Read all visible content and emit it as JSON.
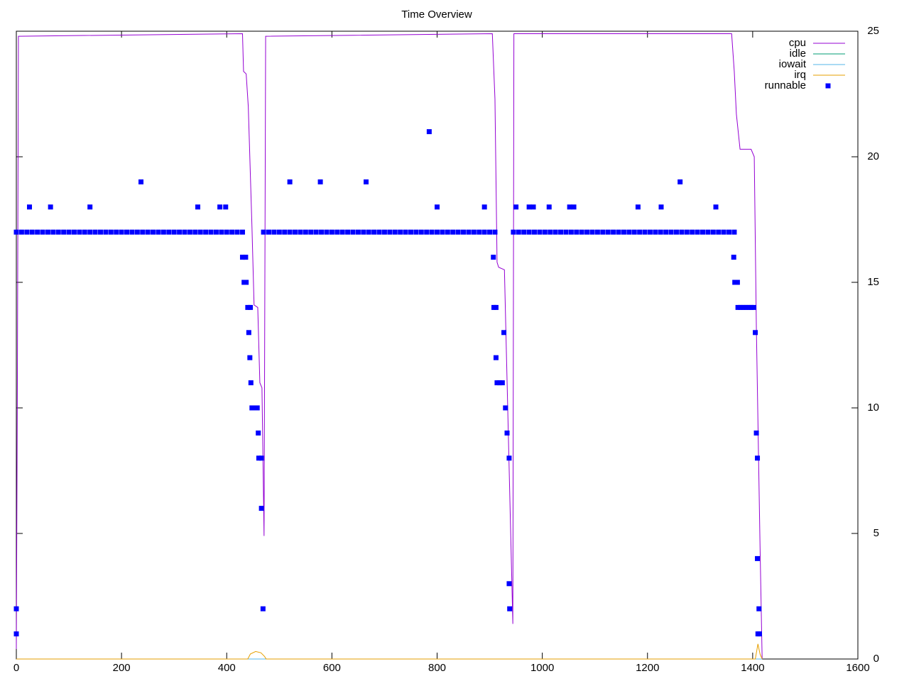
{
  "chart_data": {
    "type": "line",
    "title": "Time Overview",
    "xlim": [
      0,
      1600
    ],
    "xticks": [
      0,
      200,
      400,
      600,
      800,
      1000,
      1200,
      1400,
      1600
    ],
    "ylim": [
      0,
      25
    ],
    "yticks": [
      0,
      5,
      10,
      15,
      20,
      25
    ],
    "y_axis_side": "right",
    "legend": "top-right",
    "series": [
      {
        "name": "cpu",
        "color": "#9400d3",
        "style": "line",
        "x": [
          0,
          2,
          4,
          430,
          432,
          437,
          441,
          448,
          452,
          459,
          463,
          467,
          471,
          474,
          905,
          910,
          914,
          917,
          928,
          944,
          946,
          1360,
          1365,
          1369,
          1376,
          1397,
          1403,
          1407,
          1414,
          1418
        ],
        "values": [
          0.4,
          11,
          24.8,
          24.9,
          23.4,
          23.3,
          22,
          17.2,
          14.1,
          14,
          11,
          10.8,
          4.9,
          24.8,
          24.9,
          22.3,
          15.8,
          15.6,
          15.5,
          1.4,
          24.9,
          24.9,
          23.4,
          21.7,
          20.3,
          20.3,
          20,
          13.2,
          4.5,
          0
        ]
      },
      {
        "name": "idle",
        "color": "#009e73",
        "style": "line",
        "x": [
          0,
          1418
        ],
        "values": [
          0,
          0
        ]
      },
      {
        "name": "iowait",
        "color": "#56b4e9",
        "style": "line",
        "x": [
          0,
          1418
        ],
        "values": [
          0,
          0
        ]
      },
      {
        "name": "irq",
        "color": "#e69f00",
        "style": "line",
        "x": [
          0,
          440,
          445,
          455,
          465,
          472,
          475,
          1405,
          1410,
          1414,
          1418
        ],
        "values": [
          0,
          0,
          0.2,
          0.3,
          0.25,
          0.1,
          0,
          0,
          0.6,
          0.2,
          0
        ]
      },
      {
        "name": "runnable",
        "color": "#0000ff",
        "style": "points",
        "x": [
          0,
          10,
          20,
          30,
          40,
          50,
          60,
          70,
          80,
          90,
          100,
          110,
          120,
          130,
          140,
          150,
          160,
          170,
          180,
          190,
          200,
          210,
          220,
          230,
          240,
          250,
          260,
          270,
          280,
          290,
          300,
          310,
          320,
          330,
          340,
          350,
          360,
          370,
          380,
          390,
          400,
          410,
          420,
          430,
          470,
          480,
          490,
          500,
          510,
          520,
          530,
          540,
          550,
          560,
          570,
          580,
          590,
          600,
          610,
          620,
          630,
          640,
          650,
          660,
          670,
          680,
          690,
          700,
          710,
          720,
          730,
          740,
          750,
          760,
          770,
          780,
          790,
          800,
          810,
          820,
          830,
          840,
          850,
          860,
          870,
          880,
          890,
          900,
          910,
          945,
          955,
          965,
          975,
          985,
          995,
          1005,
          1015,
          1025,
          1035,
          1045,
          1055,
          1065,
          1075,
          1085,
          1095,
          1105,
          1115,
          1125,
          1135,
          1145,
          1155,
          1165,
          1175,
          1185,
          1195,
          1205,
          1215,
          1225,
          1235,
          1245,
          1255,
          1265,
          1275,
          1285,
          1295,
          1305,
          1315,
          1325,
          1335,
          1345,
          1355,
          1365,
          0,
          0,
          25,
          65,
          140,
          237,
          345,
          387,
          398,
          430,
          436,
          433,
          437,
          440,
          445,
          442,
          444,
          446,
          448,
          453,
          458,
          460,
          461,
          466,
          466,
          469,
          520,
          578,
          665,
          785,
          800,
          890,
          907,
          908,
          912,
          912,
          914,
          919,
          924,
          927,
          930,
          933,
          937,
          937,
          938,
          950,
          975,
          983,
          1013,
          1052,
          1060,
          1182,
          1226,
          1262,
          1330,
          1364,
          1366,
          1371,
          1372,
          1377,
          1382,
          1387,
          1392,
          1397,
          1402,
          1405,
          1407,
          1409,
          1409,
          1412,
          1410,
          1413
        ],
        "values": [
          17,
          17,
          17,
          17,
          17,
          17,
          17,
          17,
          17,
          17,
          17,
          17,
          17,
          17,
          17,
          17,
          17,
          17,
          17,
          17,
          17,
          17,
          17,
          17,
          17,
          17,
          17,
          17,
          17,
          17,
          17,
          17,
          17,
          17,
          17,
          17,
          17,
          17,
          17,
          17,
          17,
          17,
          17,
          17,
          17,
          17,
          17,
          17,
          17,
          17,
          17,
          17,
          17,
          17,
          17,
          17,
          17,
          17,
          17,
          17,
          17,
          17,
          17,
          17,
          17,
          17,
          17,
          17,
          17,
          17,
          17,
          17,
          17,
          17,
          17,
          17,
          17,
          17,
          17,
          17,
          17,
          17,
          17,
          17,
          17,
          17,
          17,
          17,
          17,
          17,
          17,
          17,
          17,
          17,
          17,
          17,
          17,
          17,
          17,
          17,
          17,
          17,
          17,
          17,
          17,
          17,
          17,
          17,
          17,
          17,
          17,
          17,
          17,
          17,
          17,
          17,
          17,
          17,
          17,
          17,
          17,
          17,
          17,
          17,
          17,
          17,
          17,
          17,
          17,
          17,
          17,
          17,
          2,
          1,
          18,
          18,
          18,
          19,
          18,
          18,
          18,
          16,
          16,
          15,
          15,
          14,
          14,
          13,
          12,
          11,
          10,
          10,
          10,
          9,
          8,
          8,
          6,
          2,
          19,
          19,
          19,
          21,
          18,
          18,
          16,
          14,
          14,
          12,
          11,
          11,
          11,
          13,
          10,
          9,
          8,
          3,
          2,
          18,
          18,
          18,
          18,
          18,
          18,
          18,
          18,
          19,
          18,
          16,
          15,
          15,
          14,
          14,
          14,
          14,
          14,
          14,
          14,
          13,
          9,
          8,
          4,
          2,
          1,
          1
        ]
      }
    ]
  }
}
